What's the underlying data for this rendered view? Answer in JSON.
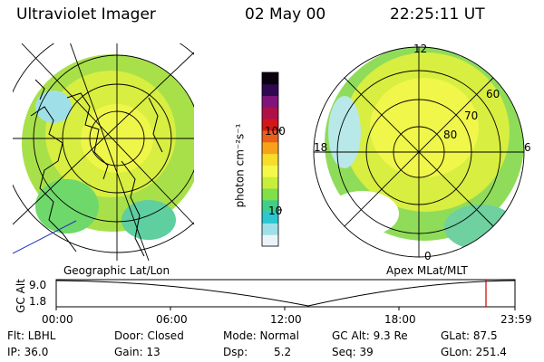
{
  "header": {
    "instrument": "Ultraviolet Imager",
    "date": "02 May 00",
    "time": "22:25:11 UT"
  },
  "panels": {
    "left_title": "Geographic Lat/Lon",
    "right_title": "Apex MLat/MLT"
  },
  "colorbar": {
    "label": "photon cm⁻²s⁻¹",
    "ticks": [
      "100",
      "10"
    ],
    "colors": [
      "#eaf4f8",
      "#9fe0e8",
      "#2cc7d0",
      "#3fcf8a",
      "#7fe04a",
      "#c8ee3a",
      "#f4f84a",
      "#f8dc2a",
      "#f7a21a",
      "#e8601a",
      "#d01818",
      "#b01048",
      "#80147a",
      "#300850",
      "#0a0010"
    ]
  },
  "polar": {
    "mlt_labels": {
      "top": "12",
      "left": "18",
      "right": "6",
      "bottom": "0"
    },
    "lat_labels": [
      "60",
      "70",
      "80"
    ]
  },
  "altitude_plot": {
    "ylabel": "GC Alt",
    "y_ticks": [
      "9.0",
      "1.8"
    ],
    "x_ticks": [
      "00:00",
      "06:00",
      "12:00",
      "18:00",
      "23:59"
    ],
    "marker_color": "#cc0000"
  },
  "info_grid": {
    "flt": "Flt: LBHL",
    "ip": "IP: 36.0",
    "door": "Door: Closed",
    "gain": "Gain: 13",
    "mode": "Mode: Normal",
    "dsp_label": "Dsp:",
    "dsp_value": "5.2",
    "gc_alt": "GC Alt: 9.3 Re",
    "seq": "Seq: 39",
    "glat": "GLat: 87.5",
    "glon": "GLon: 251.4"
  }
}
